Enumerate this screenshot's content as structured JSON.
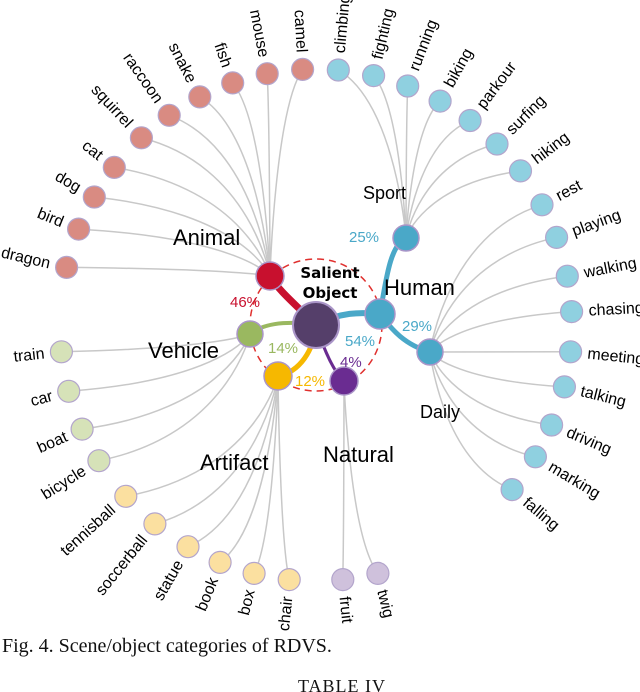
{
  "diagram": {
    "center": {
      "label_line1": "Salient",
      "label_line2": "Object"
    },
    "categories": {
      "animal": {
        "label": "Animal",
        "percent": "46%",
        "color": "#c8102e",
        "leaf_color": "#d98b82"
      },
      "human": {
        "label": "Human",
        "percent": "54%",
        "color": "#4aa8c8",
        "leaf_color": "#8fd0e0"
      },
      "vehicle": {
        "label": "Vehicle",
        "percent": "14%",
        "color": "#9ab860",
        "leaf_color": "#d6e2b8"
      },
      "artifact": {
        "label": "Artifact",
        "percent": "12%",
        "color": "#f6b800",
        "leaf_color": "#fbe0a0"
      },
      "natural": {
        "label": "Natural",
        "percent": "4%",
        "color": "#6a2c91",
        "leaf_color": "#cfc1dc"
      },
      "sport": {
        "label": "Sport",
        "percent": "25%",
        "color": "#4aa8c8"
      },
      "daily": {
        "label": "Daily",
        "percent": "29%",
        "color": "#4aa8c8"
      }
    },
    "leaves": {
      "animal": [
        "camel",
        "mouse",
        "fish",
        "snake",
        "raccoon",
        "squirrel",
        "cat",
        "dog",
        "bird",
        "dragon"
      ],
      "sport": [
        "climbing",
        "fighting",
        "running",
        "biking",
        "parkour",
        "surfing",
        "hiking"
      ],
      "daily": [
        "rest",
        "playing",
        "walking",
        "chasing",
        "meeting",
        "talking",
        "driving",
        "marking",
        "falling"
      ],
      "vehicle": [
        "train",
        "car",
        "boat",
        "bicycle"
      ],
      "artifact": [
        "tennisball",
        "soccerball",
        "statue",
        "book",
        "box",
        "chair"
      ],
      "natural": [
        "fruit",
        "twig"
      ]
    }
  },
  "caption": "Fig. 4.  Scene/object categories of RDVS.",
  "next_title": "TABLE IV"
}
